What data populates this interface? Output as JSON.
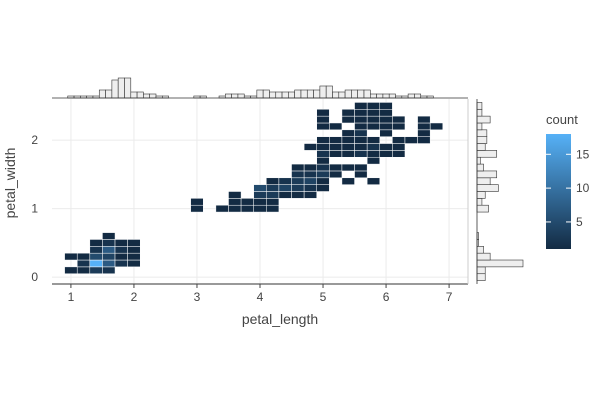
{
  "chart_data": {
    "type": "heatmap",
    "title": "",
    "xlabel": "petal_length",
    "ylabel": "petal_width",
    "xlim": [
      0.7,
      7.3
    ],
    "ylim": [
      -0.1,
      2.6
    ],
    "xticks": [
      "1",
      "2",
      "3",
      "4",
      "5",
      "6",
      "7"
    ],
    "yticks": [
      "0",
      "1",
      "2"
    ],
    "grid": true,
    "bin_width": {
      "x": 0.2,
      "y": 0.1
    },
    "legend": {
      "title": "count",
      "ticks": [
        "5",
        "10",
        "15"
      ],
      "range": [
        1,
        18
      ],
      "position": "right"
    },
    "colors": {
      "low": "#132b43",
      "high": "#56b1f7",
      "marginal_fill": "#eeeeee",
      "marginal_stroke": "#333333",
      "grid": "#ebebeb"
    },
    "bins": [
      {
        "x": 1.0,
        "y": 0.1,
        "count": 1
      },
      {
        "x": 1.2,
        "y": 0.1,
        "count": 1
      },
      {
        "x": 1.4,
        "y": 0.1,
        "count": 3
      },
      {
        "x": 1.6,
        "y": 0.1,
        "count": 2
      },
      {
        "x": 1.2,
        "y": 0.2,
        "count": 2
      },
      {
        "x": 1.4,
        "y": 0.2,
        "count": 18
      },
      {
        "x": 1.6,
        "y": 0.2,
        "count": 7
      },
      {
        "x": 1.8,
        "y": 0.2,
        "count": 2
      },
      {
        "x": 2.0,
        "y": 0.2,
        "count": 1
      },
      {
        "x": 1.0,
        "y": 0.3,
        "count": 1
      },
      {
        "x": 1.2,
        "y": 0.3,
        "count": 1
      },
      {
        "x": 1.4,
        "y": 0.3,
        "count": 5
      },
      {
        "x": 1.6,
        "y": 0.3,
        "count": 4
      },
      {
        "x": 1.8,
        "y": 0.3,
        "count": 1
      },
      {
        "x": 2.0,
        "y": 0.3,
        "count": 1
      },
      {
        "x": 1.4,
        "y": 0.4,
        "count": 2
      },
      {
        "x": 1.6,
        "y": 0.4,
        "count": 7
      },
      {
        "x": 1.8,
        "y": 0.4,
        "count": 2
      },
      {
        "x": 2.0,
        "y": 0.4,
        "count": 1
      },
      {
        "x": 1.4,
        "y": 0.5,
        "count": 1
      },
      {
        "x": 1.6,
        "y": 0.5,
        "count": 2
      },
      {
        "x": 1.8,
        "y": 0.5,
        "count": 1
      },
      {
        "x": 2.0,
        "y": 0.5,
        "count": 1
      },
      {
        "x": 1.6,
        "y": 0.6,
        "count": 1
      },
      {
        "x": 3.0,
        "y": 1.0,
        "count": 1
      },
      {
        "x": 3.4,
        "y": 1.0,
        "count": 1
      },
      {
        "x": 3.6,
        "y": 1.0,
        "count": 1
      },
      {
        "x": 3.8,
        "y": 1.0,
        "count": 1
      },
      {
        "x": 4.0,
        "y": 1.0,
        "count": 1
      },
      {
        "x": 4.2,
        "y": 1.0,
        "count": 1
      },
      {
        "x": 3.0,
        "y": 1.1,
        "count": 1
      },
      {
        "x": 3.6,
        "y": 1.1,
        "count": 1
      },
      {
        "x": 3.8,
        "y": 1.1,
        "count": 1
      },
      {
        "x": 4.0,
        "y": 1.1,
        "count": 1
      },
      {
        "x": 4.2,
        "y": 1.1,
        "count": 1
      },
      {
        "x": 3.6,
        "y": 1.2,
        "count": 1
      },
      {
        "x": 4.0,
        "y": 1.2,
        "count": 3
      },
      {
        "x": 4.2,
        "y": 1.2,
        "count": 3
      },
      {
        "x": 4.4,
        "y": 1.2,
        "count": 1
      },
      {
        "x": 4.6,
        "y": 1.2,
        "count": 1
      },
      {
        "x": 4.8,
        "y": 1.2,
        "count": 1
      },
      {
        "x": 4.0,
        "y": 1.3,
        "count": 5
      },
      {
        "x": 4.2,
        "y": 1.3,
        "count": 3
      },
      {
        "x": 4.4,
        "y": 1.3,
        "count": 4
      },
      {
        "x": 4.6,
        "y": 1.3,
        "count": 3
      },
      {
        "x": 4.8,
        "y": 1.3,
        "count": 2
      },
      {
        "x": 5.0,
        "y": 1.3,
        "count": 1
      },
      {
        "x": 4.2,
        "y": 1.4,
        "count": 1
      },
      {
        "x": 4.4,
        "y": 1.4,
        "count": 2
      },
      {
        "x": 4.6,
        "y": 1.4,
        "count": 3
      },
      {
        "x": 4.8,
        "y": 1.4,
        "count": 4
      },
      {
        "x": 5.0,
        "y": 1.4,
        "count": 1
      },
      {
        "x": 5.4,
        "y": 1.4,
        "count": 1
      },
      {
        "x": 5.8,
        "y": 1.4,
        "count": 1
      },
      {
        "x": 4.6,
        "y": 1.5,
        "count": 2
      },
      {
        "x": 4.8,
        "y": 1.5,
        "count": 2
      },
      {
        "x": 5.0,
        "y": 1.5,
        "count": 3
      },
      {
        "x": 5.2,
        "y": 1.5,
        "count": 1
      },
      {
        "x": 5.6,
        "y": 1.5,
        "count": 1
      },
      {
        "x": 4.6,
        "y": 1.6,
        "count": 1
      },
      {
        "x": 4.8,
        "y": 1.6,
        "count": 1
      },
      {
        "x": 5.0,
        "y": 1.6,
        "count": 2
      },
      {
        "x": 5.2,
        "y": 1.6,
        "count": 1
      },
      {
        "x": 5.4,
        "y": 1.6,
        "count": 1
      },
      {
        "x": 5.6,
        "y": 1.6,
        "count": 1
      },
      {
        "x": 5.0,
        "y": 1.7,
        "count": 1
      },
      {
        "x": 5.8,
        "y": 1.7,
        "count": 1
      },
      {
        "x": 5.0,
        "y": 1.8,
        "count": 2
      },
      {
        "x": 5.2,
        "y": 1.8,
        "count": 1
      },
      {
        "x": 5.4,
        "y": 1.8,
        "count": 1
      },
      {
        "x": 5.6,
        "y": 1.8,
        "count": 2
      },
      {
        "x": 5.8,
        "y": 1.8,
        "count": 1
      },
      {
        "x": 6.0,
        "y": 1.8,
        "count": 1
      },
      {
        "x": 6.2,
        "y": 1.8,
        "count": 1
      },
      {
        "x": 4.8,
        "y": 1.9,
        "count": 1
      },
      {
        "x": 5.0,
        "y": 1.9,
        "count": 1
      },
      {
        "x": 5.2,
        "y": 1.9,
        "count": 1
      },
      {
        "x": 5.4,
        "y": 1.9,
        "count": 1
      },
      {
        "x": 5.6,
        "y": 1.9,
        "count": 1
      },
      {
        "x": 5.8,
        "y": 1.9,
        "count": 2
      },
      {
        "x": 6.0,
        "y": 1.9,
        "count": 1
      },
      {
        "x": 6.2,
        "y": 1.9,
        "count": 1
      },
      {
        "x": 5.0,
        "y": 2.0,
        "count": 1
      },
      {
        "x": 5.2,
        "y": 2.0,
        "count": 1
      },
      {
        "x": 5.4,
        "y": 2.0,
        "count": 1
      },
      {
        "x": 5.6,
        "y": 2.0,
        "count": 1
      },
      {
        "x": 5.8,
        "y": 2.0,
        "count": 1
      },
      {
        "x": 6.2,
        "y": 2.0,
        "count": 1
      },
      {
        "x": 6.4,
        "y": 2.0,
        "count": 1
      },
      {
        "x": 6.6,
        "y": 2.0,
        "count": 1
      },
      {
        "x": 5.4,
        "y": 2.1,
        "count": 1
      },
      {
        "x": 5.6,
        "y": 2.1,
        "count": 2
      },
      {
        "x": 6.0,
        "y": 2.1,
        "count": 1
      },
      {
        "x": 6.6,
        "y": 2.1,
        "count": 1
      },
      {
        "x": 5.0,
        "y": 2.2,
        "count": 1
      },
      {
        "x": 5.2,
        "y": 2.2,
        "count": 1
      },
      {
        "x": 5.6,
        "y": 2.2,
        "count": 1
      },
      {
        "x": 5.8,
        "y": 2.2,
        "count": 1
      },
      {
        "x": 6.0,
        "y": 2.2,
        "count": 1
      },
      {
        "x": 6.2,
        "y": 2.2,
        "count": 1
      },
      {
        "x": 6.6,
        "y": 2.2,
        "count": 1
      },
      {
        "x": 6.8,
        "y": 2.2,
        "count": 1
      },
      {
        "x": 5.0,
        "y": 2.3,
        "count": 1
      },
      {
        "x": 5.4,
        "y": 2.3,
        "count": 1
      },
      {
        "x": 5.6,
        "y": 2.3,
        "count": 1
      },
      {
        "x": 5.8,
        "y": 2.3,
        "count": 1
      },
      {
        "x": 6.0,
        "y": 2.3,
        "count": 1
      },
      {
        "x": 6.2,
        "y": 2.3,
        "count": 1
      },
      {
        "x": 6.6,
        "y": 2.3,
        "count": 1
      },
      {
        "x": 5.0,
        "y": 2.4,
        "count": 1
      },
      {
        "x": 5.4,
        "y": 2.4,
        "count": 1
      },
      {
        "x": 5.6,
        "y": 2.4,
        "count": 1
      },
      {
        "x": 5.8,
        "y": 2.4,
        "count": 1
      },
      {
        "x": 6.0,
        "y": 2.4,
        "count": 1
      },
      {
        "x": 5.6,
        "y": 2.5,
        "count": 1
      },
      {
        "x": 5.8,
        "y": 2.5,
        "count": 1
      },
      {
        "x": 6.0,
        "y": 2.5,
        "count": 1
      }
    ],
    "marginal_x": {
      "bins": [
        1.0,
        1.1,
        1.2,
        1.3,
        1.4,
        1.5,
        1.6,
        1.7,
        1.8,
        1.9,
        2.0,
        2.1,
        2.2,
        2.3,
        2.4,
        2.5,
        2.6,
        2.7,
        2.8,
        2.9,
        3.0,
        3.1,
        3.2,
        3.3,
        3.4,
        3.5,
        3.6,
        3.7,
        3.8,
        3.9,
        4.0,
        4.1,
        4.2,
        4.3,
        4.4,
        4.5,
        4.6,
        4.7,
        4.8,
        4.9,
        5.0,
        5.1,
        5.2,
        5.3,
        5.4,
        5.5,
        5.6,
        5.7,
        5.8,
        5.9,
        6.0,
        6.1,
        6.2,
        6.3,
        6.4,
        6.5,
        6.6,
        6.7,
        6.8,
        6.9
      ],
      "counts": [
        1,
        1,
        1,
        1,
        1,
        4,
        4,
        9,
        10,
        10,
        3,
        3,
        2,
        2,
        1,
        1,
        0,
        0,
        0,
        0,
        1,
        1,
        0,
        0,
        1,
        2,
        2,
        2,
        1,
        1,
        4,
        4,
        3,
        3,
        3,
        3,
        4,
        4,
        4,
        4,
        6,
        6,
        3,
        3,
        4,
        4,
        4,
        4,
        2,
        2,
        2,
        2,
        1,
        1,
        2,
        2,
        1,
        1,
        0,
        0
      ],
      "max": 10
    },
    "marginal_y": {
      "bins": [
        0.0,
        0.1,
        0.2,
        0.3,
        0.4,
        0.5,
        0.6,
        0.7,
        0.8,
        0.9,
        1.0,
        1.1,
        1.2,
        1.3,
        1.4,
        1.5,
        1.6,
        1.7,
        1.8,
        1.9,
        2.0,
        2.1,
        2.2,
        2.3,
        2.4,
        2.5
      ],
      "counts": [
        5,
        5,
        28,
        8,
        4,
        1,
        1,
        0,
        0,
        0,
        7,
        3,
        5,
        13,
        8,
        12,
        4,
        2,
        12,
        5,
        6,
        6,
        3,
        8,
        3,
        3
      ],
      "max": 28
    }
  }
}
